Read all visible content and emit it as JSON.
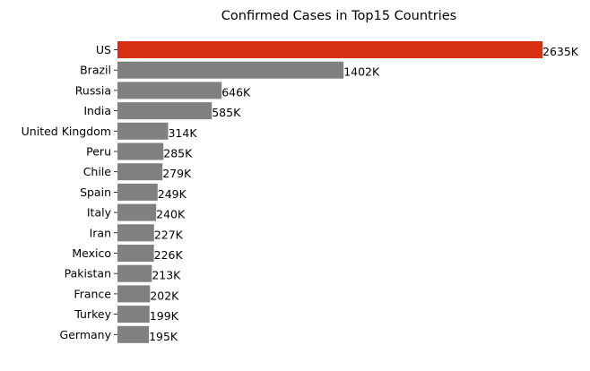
{
  "chart_data": {
    "type": "bar",
    "orientation": "horizontal",
    "title": "Confirmed Cases in Top15 Countries",
    "xlabel": "",
    "ylabel": "",
    "grid": false,
    "legend": "none",
    "value_unit_suffix": "K",
    "categories": [
      "US",
      "Brazil",
      "Russia",
      "India",
      "United Kingdom",
      "Peru",
      "Chile",
      "Spain",
      "Italy",
      "Iran",
      "Mexico",
      "Pakistan",
      "France",
      "Turkey",
      "Germany"
    ],
    "values": [
      2635,
      1402,
      646,
      585,
      314,
      285,
      279,
      249,
      240,
      227,
      226,
      213,
      202,
      199,
      195
    ],
    "value_labels": [
      "2635K",
      "1402K",
      "646K",
      "585K",
      "314K",
      "285K",
      "279K",
      "249K",
      "240K",
      "227K",
      "226K",
      "213K",
      "202K",
      "199K",
      "195K"
    ],
    "xlim": [
      0,
      2635
    ],
    "colors": {
      "highlight": "#d62f12",
      "default": "#808080"
    },
    "highlight_category": "US"
  }
}
